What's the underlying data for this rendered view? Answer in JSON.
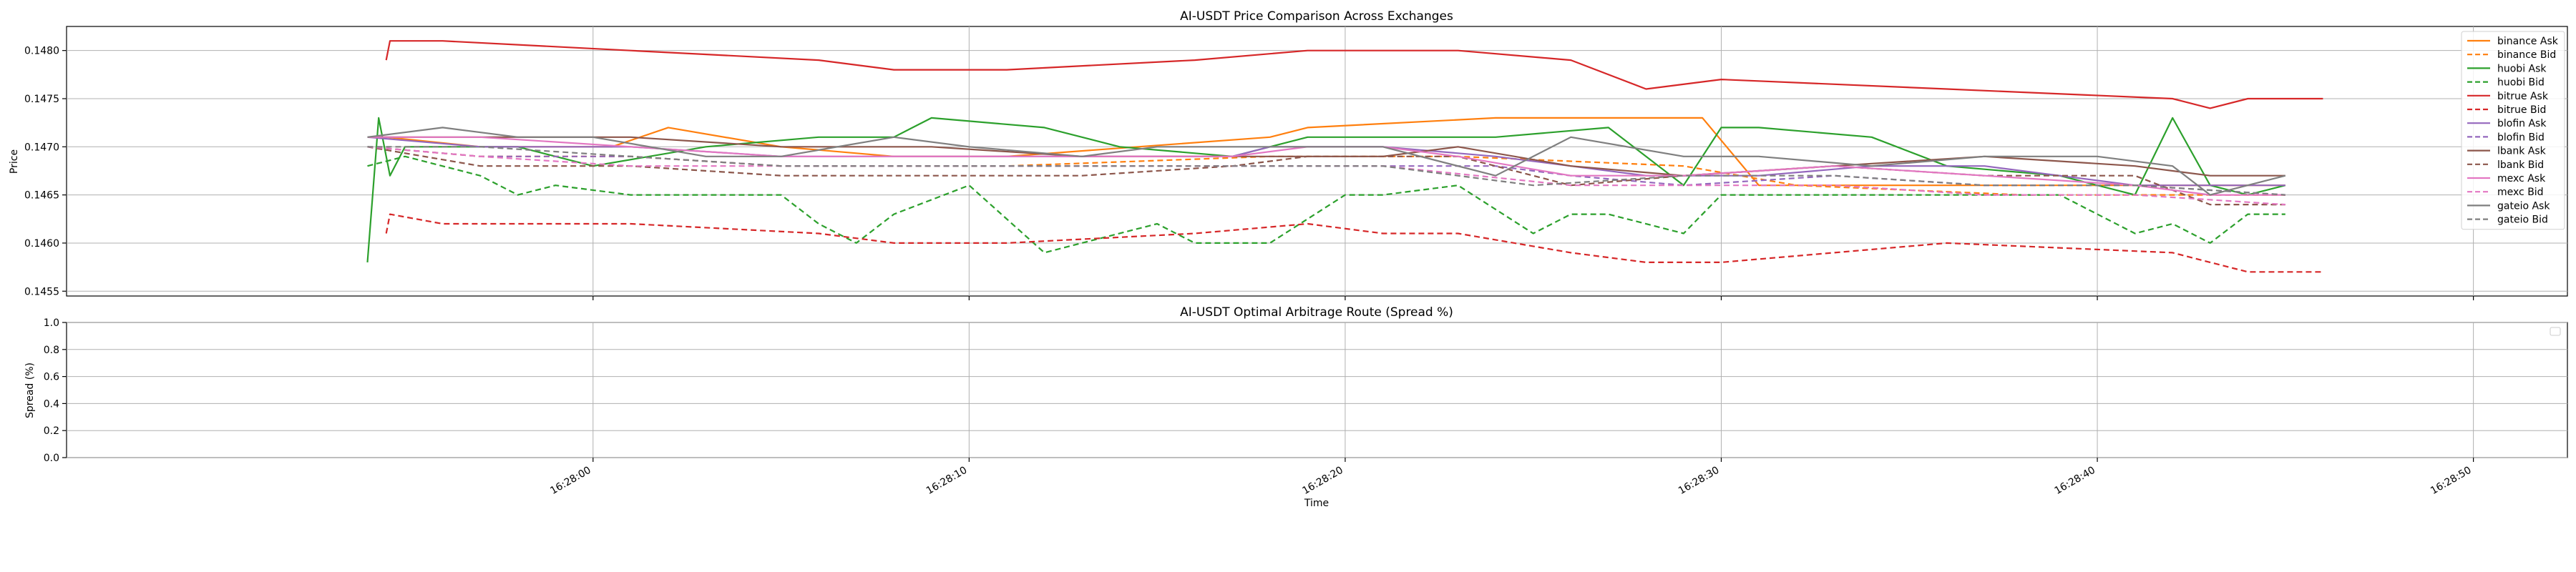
{
  "chart_data": [
    {
      "type": "line",
      "title": "AI-USDT Price Comparison Across Exchanges",
      "xlabel": "",
      "ylabel": "Price",
      "ylim": [
        0.14545,
        0.14825
      ],
      "yticks": [
        "0.1455",
        "0.1460",
        "0.1465",
        "0.1470",
        "0.1475",
        "0.1480"
      ],
      "ytick_values": [
        0.1455,
        0.146,
        0.1465,
        0.147,
        0.1475,
        0.148
      ],
      "x_unit": "seconds after 16:27:51",
      "xlim": [
        -5,
        61.5
      ],
      "grid": true,
      "legend_position": "upper right",
      "series": [
        {
          "name": "binance Ask",
          "color": "#ff7f0e",
          "dash": false,
          "x": [
            3,
            3.5,
            6,
            9.5,
            11,
            14,
            17,
            20,
            27,
            28,
            33,
            34,
            38.5,
            40,
            44,
            47,
            52,
            54
          ],
          "y": [
            0.1471,
            0.1471,
            0.147,
            0.147,
            0.1472,
            0.147,
            0.1469,
            0.1469,
            0.1471,
            0.1472,
            0.1473,
            0.1473,
            0.1473,
            0.1466,
            0.1466,
            0.1466,
            0.1466,
            0.1466
          ]
        },
        {
          "name": "binance Bid",
          "color": "#ff7f0e",
          "dash": true,
          "x": [
            3,
            6,
            10,
            14,
            20,
            27,
            32,
            38,
            41,
            47,
            54
          ],
          "y": [
            0.147,
            0.1469,
            0.1469,
            0.1468,
            0.1468,
            0.1469,
            0.1469,
            0.1468,
            0.1466,
            0.1465,
            0.1465
          ]
        },
        {
          "name": "huobi Ask",
          "color": "#2ca02c",
          "dash": false,
          "x": [
            3,
            3.3,
            3.6,
            4,
            7,
            9,
            12,
            15,
            17,
            18,
            21,
            23,
            26,
            28,
            32,
            33,
            36,
            38,
            39,
            40,
            43,
            45,
            48,
            50,
            51,
            52,
            53,
            54
          ],
          "y": [
            0.1458,
            0.1473,
            0.1467,
            0.147,
            0.147,
            0.1468,
            0.147,
            0.1471,
            0.1471,
            0.1473,
            0.1472,
            0.147,
            0.1469,
            0.1471,
            0.1471,
            0.1471,
            0.1472,
            0.1466,
            0.1472,
            0.1472,
            0.1471,
            0.1468,
            0.1467,
            0.1465,
            0.1473,
            0.1466,
            0.1465,
            0.1466
          ]
        },
        {
          "name": "huobi Bid",
          "color": "#2ca02c",
          "dash": true,
          "x": [
            3,
            4,
            6,
            7,
            8,
            10,
            12,
            14,
            15,
            16,
            17,
            19,
            21,
            22,
            24,
            25,
            27,
            29,
            30,
            32,
            34,
            35,
            36,
            38,
            39,
            41,
            43,
            45,
            47,
            48,
            50,
            51,
            52,
            53,
            54
          ],
          "y": [
            0.1468,
            0.1469,
            0.1467,
            0.1465,
            0.1466,
            0.1465,
            0.1465,
            0.1465,
            0.1462,
            0.146,
            0.1463,
            0.1466,
            0.1459,
            0.146,
            0.1462,
            0.146,
            0.146,
            0.1465,
            0.1465,
            0.1466,
            0.1461,
            0.1463,
            0.1463,
            0.1461,
            0.1465,
            0.1465,
            0.1465,
            0.1465,
            0.1465,
            0.1465,
            0.1461,
            0.1462,
            0.146,
            0.1463,
            0.1463
          ]
        },
        {
          "name": "bitrue Ask",
          "color": "#d62728",
          "dash": false,
          "x": [
            3.5,
            3.6,
            5,
            10,
            15,
            17,
            20,
            25,
            28,
            30,
            32,
            35,
            37,
            39,
            45,
            51,
            52,
            53,
            54,
            55
          ],
          "y": [
            0.1479,
            0.1481,
            0.1481,
            0.148,
            0.1479,
            0.1478,
            0.1478,
            0.1479,
            0.148,
            0.148,
            0.148,
            0.1479,
            0.1476,
            0.1477,
            0.1476,
            0.1475,
            0.1474,
            0.1475,
            0.1475,
            0.1475
          ]
        },
        {
          "name": "bitrue Bid",
          "color": "#d62728",
          "dash": true,
          "x": [
            3.5,
            3.6,
            5,
            10,
            15,
            17,
            20,
            25,
            28,
            30,
            32,
            35,
            37,
            39,
            45,
            51,
            52,
            53,
            55
          ],
          "y": [
            0.1461,
            0.1463,
            0.1462,
            0.1462,
            0.1461,
            0.146,
            0.146,
            0.1461,
            0.1462,
            0.1461,
            0.1461,
            0.1459,
            0.1458,
            0.1458,
            0.146,
            0.1459,
            0.1458,
            0.1457,
            0.1457
          ]
        },
        {
          "name": "blofin Ask",
          "color": "#9467bd",
          "dash": false,
          "x": [
            3,
            6,
            10,
            14,
            18,
            22,
            26,
            27,
            30,
            33,
            35,
            37,
            40,
            43,
            46,
            48,
            50,
            52,
            54
          ],
          "y": [
            0.1471,
            0.147,
            0.147,
            0.1469,
            0.1469,
            0.1469,
            0.1469,
            0.147,
            0.147,
            0.1469,
            0.1468,
            0.1467,
            0.1467,
            0.1468,
            0.1468,
            0.1467,
            0.1466,
            0.1466,
            0.1466
          ]
        },
        {
          "name": "blofin Bid",
          "color": "#9467bd",
          "dash": true,
          "x": [
            3,
            6,
            10,
            14,
            18,
            22,
            26,
            30,
            33,
            35,
            38,
            42,
            46,
            50,
            54
          ],
          "y": [
            0.147,
            0.1469,
            0.1469,
            0.1468,
            0.1468,
            0.1468,
            0.1468,
            0.1468,
            0.1468,
            0.1467,
            0.1466,
            0.1467,
            0.1466,
            0.1466,
            0.1465
          ]
        },
        {
          "name": "lbank Ask",
          "color": "#8c564b",
          "dash": false,
          "x": [
            3,
            6,
            10,
            14,
            18,
            22,
            26,
            28,
            30,
            32,
            35,
            38,
            42,
            46,
            50,
            52,
            54
          ],
          "y": [
            0.1471,
            0.1471,
            0.1471,
            0.147,
            0.147,
            0.1469,
            0.1469,
            0.1469,
            0.1469,
            0.147,
            0.1468,
            0.1467,
            0.1468,
            0.1469,
            0.1468,
            0.1467,
            0.1467
          ]
        },
        {
          "name": "lbank Bid",
          "color": "#8c564b",
          "dash": true,
          "x": [
            3,
            6,
            10,
            14,
            18,
            22,
            26,
            28,
            30,
            32,
            35,
            38,
            42,
            46,
            50,
            52,
            54
          ],
          "y": [
            0.147,
            0.1468,
            0.1468,
            0.1467,
            0.1467,
            0.1467,
            0.1468,
            0.1469,
            0.1469,
            0.1469,
            0.1466,
            0.1467,
            0.1468,
            0.1467,
            0.1467,
            0.1464,
            0.1464
          ]
        },
        {
          "name": "mexc Ask",
          "color": "#e377c2",
          "dash": false,
          "x": [
            3,
            6,
            10,
            14,
            18,
            22,
            26,
            28,
            30,
            32,
            35,
            38,
            42,
            46,
            50,
            52,
            54
          ],
          "y": [
            0.1471,
            0.1471,
            0.147,
            0.1469,
            0.1469,
            0.1469,
            0.1469,
            0.147,
            0.147,
            0.1469,
            0.1467,
            0.1467,
            0.1468,
            0.1467,
            0.1466,
            0.1465,
            0.1465
          ]
        },
        {
          "name": "mexc Bid",
          "color": "#e377c2",
          "dash": true,
          "x": [
            3,
            6,
            10,
            14,
            18,
            22,
            26,
            30,
            35,
            38,
            42,
            46,
            50,
            54
          ],
          "y": [
            0.147,
            0.1469,
            0.1468,
            0.1468,
            0.1468,
            0.1468,
            0.1468,
            0.1468,
            0.1466,
            0.1466,
            0.1466,
            0.1465,
            0.1465,
            0.1464
          ]
        },
        {
          "name": "gateio Ask",
          "color": "#7f7f7f",
          "dash": false,
          "x": [
            3,
            5,
            7,
            9,
            12,
            14,
            17,
            19,
            22,
            24,
            27,
            30,
            33,
            35,
            38,
            40,
            43,
            46,
            49,
            51,
            52,
            54
          ],
          "y": [
            0.1471,
            0.1472,
            0.1471,
            0.1471,
            0.1469,
            0.1469,
            0.1471,
            0.147,
            0.1469,
            0.147,
            0.147,
            0.147,
            0.1467,
            0.1471,
            0.1469,
            0.1469,
            0.1468,
            0.1469,
            0.1469,
            0.1468,
            0.1465,
            0.1467
          ]
        },
        {
          "name": "gateio Bid",
          "color": "#7f7f7f",
          "dash": true,
          "x": [
            3,
            6,
            10,
            14,
            18,
            22,
            26,
            30,
            34,
            38,
            42,
            46,
            50,
            54
          ],
          "y": [
            0.147,
            0.147,
            0.1469,
            0.1468,
            0.1468,
            0.1468,
            0.1468,
            0.1468,
            0.1466,
            0.1467,
            0.1467,
            0.1466,
            0.1466,
            0.1465
          ]
        }
      ]
    },
    {
      "type": "line",
      "title": "AI-USDT Optimal Arbitrage Route (Spread %)",
      "xlabel": "Time",
      "ylabel": "Spread (%)",
      "ylim": [
        0.0,
        1.0
      ],
      "yticks": [
        "0.0",
        "0.2",
        "0.4",
        "0.6",
        "0.8",
        "1.0"
      ],
      "ytick_values": [
        0.0,
        0.2,
        0.4,
        0.6,
        0.8,
        1.0
      ],
      "xticks": [
        "16:28:00",
        "16:28:10",
        "16:28:20",
        "16:28:30",
        "16:28:40",
        "16:28:50"
      ],
      "xtick_values": [
        9,
        19,
        29,
        39,
        49,
        59
      ],
      "xlim": [
        -5,
        61.5
      ],
      "grid": true,
      "legend_position": "upper right",
      "series": []
    }
  ]
}
